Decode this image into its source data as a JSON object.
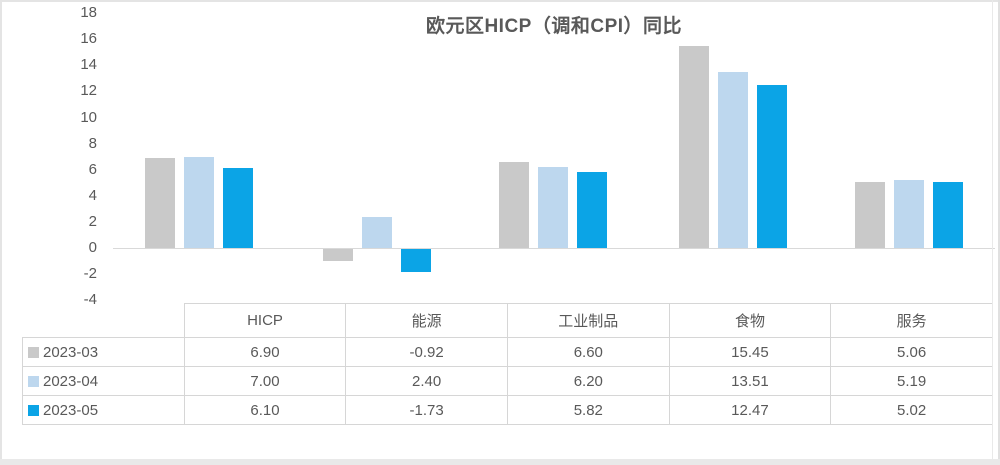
{
  "chart": {
    "title": "欧元区HICP（调和CPI）同比"
  },
  "chart_data": {
    "type": "bar",
    "title": "欧元区HICP（调和CPI）同比",
    "categories": [
      "HICP",
      "能源",
      "工业制品",
      "食物",
      "服务"
    ],
    "series": [
      {
        "name": "2023-03",
        "color": "#c9c9c9",
        "values": [
          6.9,
          -0.92,
          6.6,
          15.45,
          5.06
        ]
      },
      {
        "name": "2023-04",
        "color": "#bdd7ee",
        "values": [
          7.0,
          2.4,
          6.2,
          13.51,
          5.19
        ]
      },
      {
        "name": "2023-05",
        "color": "#0ba4e6",
        "values": [
          6.1,
          -1.73,
          5.82,
          12.47,
          5.02
        ]
      }
    ],
    "ylim": [
      -4,
      18
    ],
    "yticks": [
      18,
      16,
      14,
      12,
      10,
      8,
      6,
      4,
      2,
      0,
      -2,
      -4
    ],
    "grid": false,
    "legend_position": "table-rows-left"
  },
  "table": {
    "headers": [
      "HICP",
      "能源",
      "工业制品",
      "食物",
      "服务"
    ],
    "rows": [
      {
        "label": "2023-03",
        "values": [
          "6.90",
          "-0.92",
          "6.60",
          "15.45",
          "5.06"
        ]
      },
      {
        "label": "2023-04",
        "values": [
          "7.00",
          "2.40",
          "6.20",
          "13.51",
          "5.19"
        ]
      },
      {
        "label": "2023-05",
        "values": [
          "6.10",
          "-1.73",
          "5.82",
          "12.47",
          "5.02"
        ]
      }
    ]
  },
  "colors": {
    "series": [
      "#c9c9c9",
      "#bdd7ee",
      "#0ba4e6"
    ],
    "text": "#595959",
    "axis_line": "#d9d9d9",
    "table_border": "#d6d6d6"
  }
}
